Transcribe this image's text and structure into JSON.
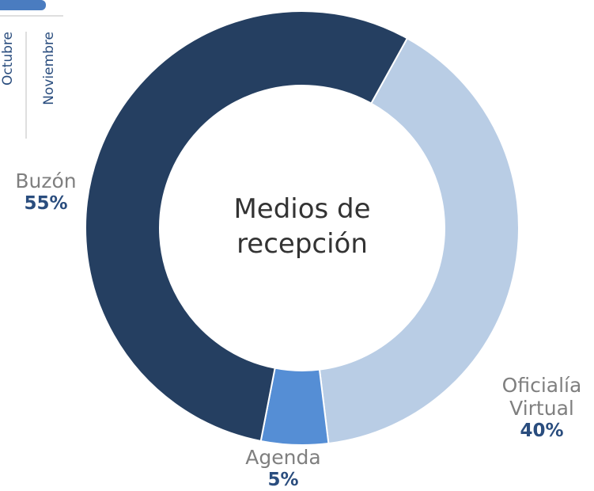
{
  "chart_data": {
    "type": "donut",
    "title": "Medios de recepción",
    "categories": [
      "Oficialía Virtual",
      "Agenda",
      "Buzón"
    ],
    "values": [
      40,
      5,
      55
    ],
    "value_labels": [
      "40%",
      "5%",
      "55%"
    ],
    "colors": [
      "#b9cde5",
      "#558ed5",
      "#253f61"
    ]
  },
  "fragment": {
    "labels": [
      "Octubre",
      "Noviembre"
    ]
  }
}
